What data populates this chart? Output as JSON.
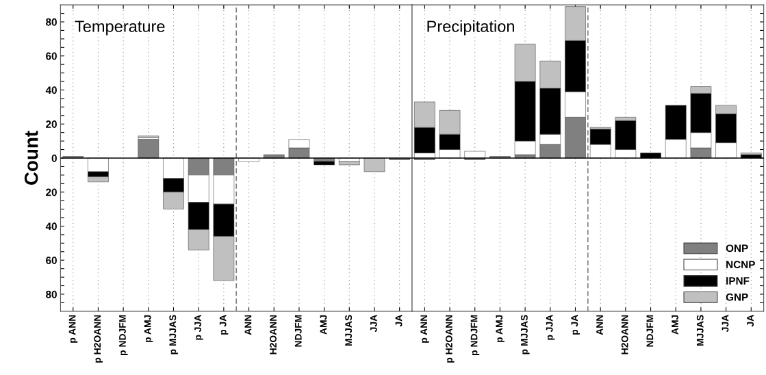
{
  "chart_data": [
    {
      "type": "bar",
      "title": "Temperature",
      "ylabel": "Count",
      "stacked": true,
      "grid": "x",
      "legend": false,
      "categories": [
        "p ANN",
        "p H2OANN",
        "p NDJFM",
        "p AMJ",
        "p MJJAS",
        "p JJA",
        "p JA",
        "ANN",
        "H2OANN",
        "NDJFM",
        "AMJ",
        "MJJAS",
        "JJA",
        "JA"
      ],
      "series": [
        {
          "color": "#808080",
          "values": [
            1,
            0,
            0,
            11,
            0,
            -10,
            -10,
            0,
            2,
            6,
            -2,
            0,
            0,
            -1
          ]
        },
        {
          "color": "#ffffff",
          "values": [
            0,
            -8,
            0,
            1,
            -12,
            -16,
            -17,
            -2,
            0,
            5,
            0,
            -2,
            0,
            0
          ]
        },
        {
          "color": "#000000",
          "values": [
            0,
            -3,
            0,
            0,
            -8,
            -16,
            -19,
            0,
            0,
            0,
            -2,
            0,
            0,
            0
          ]
        },
        {
          "color": "#c0c0c0",
          "values": [
            0,
            -3,
            0,
            1,
            -10,
            -12,
            -26,
            0,
            0,
            0,
            0,
            -2,
            -8,
            0
          ]
        }
      ],
      "ylim": [
        -90,
        90
      ],
      "yticks": [
        {
          "value": -85,
          "label": null
        },
        {
          "value": -80,
          "label": "80"
        },
        {
          "value": -75,
          "label": null
        },
        {
          "value": -70,
          "label": null
        },
        {
          "value": -65,
          "label": null
        },
        {
          "value": -60,
          "label": "60"
        },
        {
          "value": -55,
          "label": null
        },
        {
          "value": -50,
          "label": null
        },
        {
          "value": -45,
          "label": null
        },
        {
          "value": -40,
          "label": "40"
        },
        {
          "value": -35,
          "label": null
        },
        {
          "value": -30,
          "label": null
        },
        {
          "value": -25,
          "label": null
        },
        {
          "value": -20,
          "label": "20"
        },
        {
          "value": -15,
          "label": null
        },
        {
          "value": -10,
          "label": null
        },
        {
          "value": -5,
          "label": null
        },
        0,
        {
          "value": 5,
          "label": null
        },
        {
          "value": 10,
          "label": null
        },
        {
          "value": 15,
          "label": null
        },
        20,
        {
          "value": 25,
          "label": null
        },
        {
          "value": 30,
          "label": null
        },
        {
          "value": 35,
          "label": null
        },
        40,
        {
          "value": 45,
          "label": null
        },
        {
          "value": 50,
          "label": null
        },
        {
          "value": 55,
          "label": null
        },
        60,
        {
          "value": 65,
          "label": null
        },
        {
          "value": 70,
          "label": null
        },
        {
          "value": 75,
          "label": null
        },
        80,
        {
          "value": 85,
          "label": null
        }
      ],
      "ref_lines": [
        {
          "axis": "y",
          "value": 0,
          "line_style": "solid",
          "color": "#000000"
        }
      ]
    },
    {
      "type": "bar",
      "title": "Precipitation",
      "stacked": true,
      "grid": "x",
      "legend": "bottom right",
      "tick_labels": "x",
      "categories": [
        "p ANN",
        "p H2OANN",
        "p NDJFM",
        "p AMJ",
        "p MJJAS",
        "p JJA",
        "p JA",
        "ANN",
        "H2OANN",
        "NDJFM",
        "AMJ",
        "MJJAS",
        "JJA",
        "JA"
      ],
      "series": [
        {
          "name": "ONP",
          "color": "#808080",
          "values": [
            -1,
            0,
            -1,
            1,
            2,
            8,
            24,
            0,
            0,
            0,
            null,
            6,
            null,
            0
          ]
        },
        {
          "name": "NCNP",
          "color": "#ffffff",
          "values": [
            3,
            5,
            4,
            0,
            8,
            6,
            15,
            8,
            5,
            null,
            11,
            9,
            9,
            0
          ]
        },
        {
          "name": "IPNF",
          "color": "#000000",
          "values": [
            15,
            9,
            0,
            0,
            35,
            27,
            30,
            9,
            17,
            3,
            20,
            23,
            17,
            2
          ]
        },
        {
          "name": "GNP",
          "color": "#c0c0c0",
          "values": [
            15,
            14,
            0,
            0,
            22,
            16,
            20,
            1,
            2,
            0,
            0,
            4,
            5,
            1
          ]
        }
      ],
      "ylim": [
        -90,
        90
      ],
      "yticks": [
        {
          "value": -85,
          "label": null
        },
        {
          "value": -80,
          "label": null
        },
        {
          "value": -75,
          "label": null
        },
        {
          "value": -70,
          "label": null
        },
        {
          "value": -65,
          "label": null
        },
        {
          "value": -60,
          "label": null
        },
        {
          "value": -55,
          "label": null
        },
        {
          "value": -50,
          "label": null
        },
        {
          "value": -45,
          "label": null
        },
        {
          "value": -40,
          "label": null
        },
        {
          "value": -35,
          "label": null
        },
        {
          "value": -30,
          "label": null
        },
        {
          "value": -25,
          "label": null
        },
        {
          "value": -20,
          "label": null
        },
        {
          "value": -15,
          "label": null
        },
        {
          "value": -10,
          "label": null
        },
        {
          "value": -5,
          "label": null
        },
        {
          "value": 0,
          "label": null
        },
        {
          "value": 5,
          "label": null
        },
        {
          "value": 10,
          "label": null
        },
        {
          "value": 15,
          "label": null
        },
        {
          "value": 20,
          "label": null
        },
        {
          "value": 25,
          "label": null
        },
        {
          "value": 30,
          "label": null
        },
        {
          "value": 35,
          "label": null
        },
        {
          "value": 40,
          "label": null
        },
        {
          "value": 45,
          "label": null
        },
        {
          "value": 50,
          "label": null
        },
        {
          "value": 55,
          "label": null
        },
        {
          "value": 60,
          "label": null
        },
        {
          "value": 65,
          "label": null
        },
        {
          "value": 70,
          "label": null
        },
        {
          "value": 75,
          "label": null
        },
        {
          "value": 80,
          "label": null
        },
        {
          "value": 85,
          "label": null
        }
      ],
      "ref_lines": [
        {
          "axis": "y",
          "value": 0,
          "line_style": "solid",
          "color": "#000000"
        }
      ]
    }
  ]
}
